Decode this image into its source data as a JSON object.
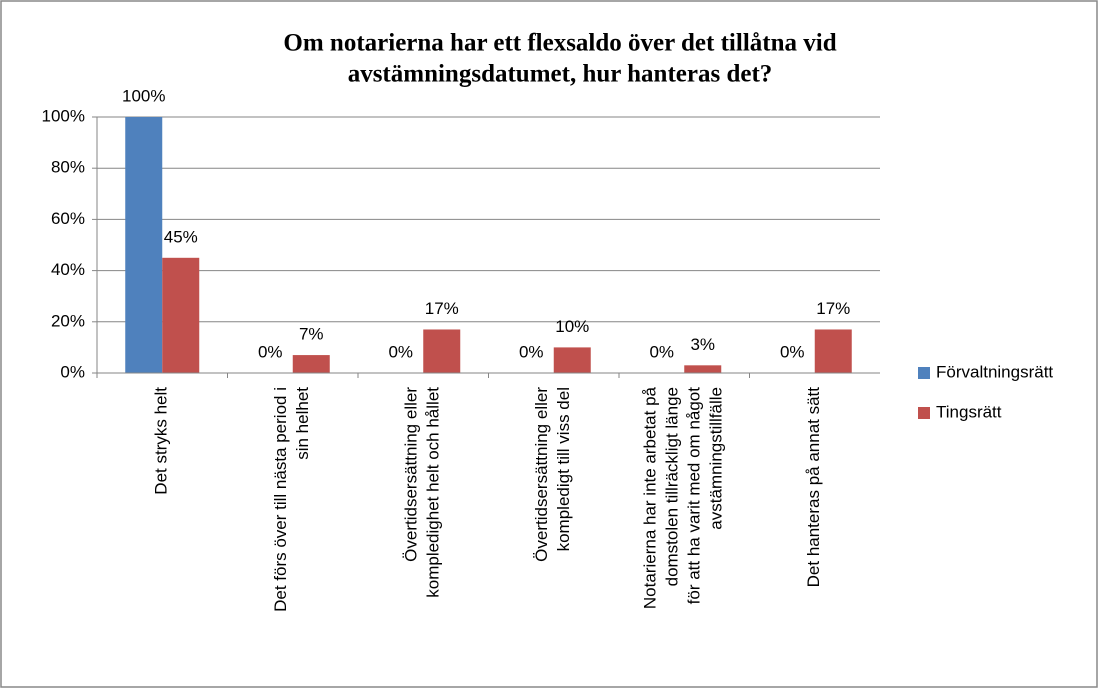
{
  "chart_data": {
    "type": "bar",
    "title": [
      "Om notarierna har ett flexsaldo över det tillåtna vid",
      "avstämningsdatumet, hur hanteras det?"
    ],
    "categories": [
      [
        "Det stryks helt"
      ],
      [
        "Det förs över till nästa period i",
        "sin helhet"
      ],
      [
        "Övertidsersättning eller",
        "kompledighet helt och hållet"
      ],
      [
        "Övertidsersättning eller",
        "kompledigt till viss del"
      ],
      [
        "Notarierna har inte arbetat på",
        "domstolen tillräckligt länge",
        "för att ha varit med om något",
        "avstämningstillfälle"
      ],
      [
        "Det hanteras på annat sätt"
      ]
    ],
    "series": [
      {
        "name": "Förvaltningsrätt",
        "color": "#4f81bd",
        "values": [
          100,
          0,
          0,
          0,
          0,
          0
        ],
        "value_labels": [
          "100%",
          "0%",
          "0%",
          "0%",
          "0%",
          "0%"
        ]
      },
      {
        "name": "Tingsrätt",
        "color": "#c0504d",
        "values": [
          45,
          7,
          17,
          10,
          3,
          17
        ],
        "value_labels": [
          "45%",
          "7%",
          "17%",
          "10%",
          "3%",
          "17%"
        ]
      }
    ],
    "ylim": [
      0,
      100
    ],
    "yticks": [
      {
        "value": 0,
        "label": "0%"
      },
      {
        "value": 20,
        "label": "20%"
      },
      {
        "value": 40,
        "label": "40%"
      },
      {
        "value": 60,
        "label": "60%"
      },
      {
        "value": 80,
        "label": "80%"
      },
      {
        "value": 100,
        "label": "100%"
      }
    ],
    "grid": true,
    "legend": "right"
  }
}
